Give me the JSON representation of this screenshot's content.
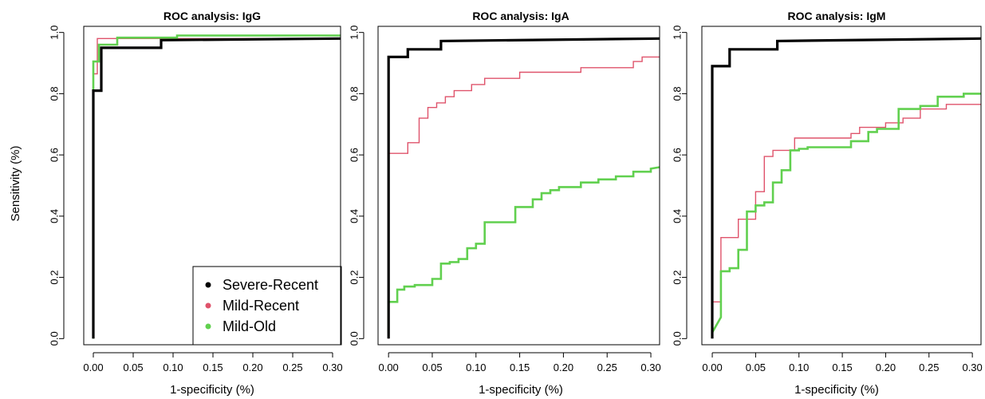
{
  "chart_data": [
    {
      "type": "line",
      "title": "ROC analysis:  IgG",
      "xlabel": "1-specificity (%)",
      "ylabel": "Sensitivity (%)",
      "xlim": [
        -0.012,
        0.31
      ],
      "ylim": [
        -0.02,
        1.02
      ],
      "xticks": [
        "0.00",
        "0.05",
        "0.10",
        "0.15",
        "0.20",
        "0.25",
        "0.30"
      ],
      "yticks": [
        "0.0",
        "0.2",
        "0.4",
        "0.6",
        "0.8",
        "1.0"
      ],
      "legend": {
        "position": "bottom-right",
        "entries": [
          "Severe-Recent",
          "Mild-Recent",
          "Mild-Old"
        ]
      },
      "series": [
        {
          "name": "Severe-Recent",
          "color": "#000000",
          "points": [
            [
              0,
              0
            ],
            [
              0,
              0.81
            ],
            [
              0.01,
              0.81
            ],
            [
              0.01,
              0.95
            ],
            [
              0.085,
              0.95
            ],
            [
              0.085,
              0.975
            ],
            [
              0.31,
              0.98
            ]
          ]
        },
        {
          "name": "Mild-Recent",
          "color": "#DF536B",
          "points": [
            [
              0,
              0
            ],
            [
              0,
              0.865
            ],
            [
              0.005,
              0.865
            ],
            [
              0.005,
              0.98
            ],
            [
              0.31,
              0.98
            ]
          ]
        },
        {
          "name": "Mild-Old",
          "color": "#61D04F",
          "points": [
            [
              0,
              0
            ],
            [
              0,
              0.905
            ],
            [
              0.007,
              0.905
            ],
            [
              0.007,
              0.96
            ],
            [
              0.03,
              0.96
            ],
            [
              0.03,
              0.983
            ],
            [
              0.105,
              0.983
            ],
            [
              0.105,
              0.99
            ],
            [
              0.31,
              0.99
            ]
          ]
        }
      ]
    },
    {
      "type": "line",
      "title": "ROC analysis:  IgA",
      "xlabel": "1-specificity (%)",
      "ylabel": "",
      "xlim": [
        -0.012,
        0.31
      ],
      "ylim": [
        -0.02,
        1.02
      ],
      "xticks": [
        "0.00",
        "0.05",
        "0.10",
        "0.15",
        "0.20",
        "0.25",
        "0.30"
      ],
      "yticks": [
        "0.0",
        "0.2",
        "0.4",
        "0.6",
        "0.8",
        "1.0"
      ],
      "series": [
        {
          "name": "Severe-Recent",
          "color": "#000000",
          "points": [
            [
              0,
              0
            ],
            [
              0,
              0.92
            ],
            [
              0.022,
              0.92
            ],
            [
              0.022,
              0.945
            ],
            [
              0.06,
              0.945
            ],
            [
              0.06,
              0.972
            ],
            [
              0.31,
              0.98
            ]
          ]
        },
        {
          "name": "Mild-Recent",
          "color": "#DF536B",
          "points": [
            [
              0,
              0
            ],
            [
              0,
              0.605
            ],
            [
              0.022,
              0.605
            ],
            [
              0.022,
              0.64
            ],
            [
              0.035,
              0.64
            ],
            [
              0.035,
              0.72
            ],
            [
              0.045,
              0.72
            ],
            [
              0.045,
              0.755
            ],
            [
              0.055,
              0.755
            ],
            [
              0.055,
              0.77
            ],
            [
              0.065,
              0.77
            ],
            [
              0.065,
              0.79
            ],
            [
              0.075,
              0.79
            ],
            [
              0.075,
              0.81
            ],
            [
              0.095,
              0.81
            ],
            [
              0.095,
              0.83
            ],
            [
              0.11,
              0.83
            ],
            [
              0.11,
              0.85
            ],
            [
              0.15,
              0.85
            ],
            [
              0.15,
              0.87
            ],
            [
              0.22,
              0.87
            ],
            [
              0.22,
              0.885
            ],
            [
              0.28,
              0.885
            ],
            [
              0.28,
              0.905
            ],
            [
              0.29,
              0.905
            ],
            [
              0.29,
              0.92
            ],
            [
              0.31,
              0.92
            ]
          ]
        },
        {
          "name": "Mild-Old",
          "color": "#61D04F",
          "points": [
            [
              0,
              0.02
            ],
            [
              0,
              0.12
            ],
            [
              0.01,
              0.12
            ],
            [
              0.01,
              0.16
            ],
            [
              0.018,
              0.16
            ],
            [
              0.018,
              0.17
            ],
            [
              0.03,
              0.17
            ],
            [
              0.03,
              0.175
            ],
            [
              0.05,
              0.175
            ],
            [
              0.05,
              0.195
            ],
            [
              0.06,
              0.195
            ],
            [
              0.06,
              0.245
            ],
            [
              0.07,
              0.245
            ],
            [
              0.07,
              0.25
            ],
            [
              0.08,
              0.25
            ],
            [
              0.08,
              0.26
            ],
            [
              0.09,
              0.26
            ],
            [
              0.09,
              0.295
            ],
            [
              0.1,
              0.295
            ],
            [
              0.1,
              0.31
            ],
            [
              0.11,
              0.31
            ],
            [
              0.11,
              0.38
            ],
            [
              0.145,
              0.38
            ],
            [
              0.145,
              0.43
            ],
            [
              0.165,
              0.43
            ],
            [
              0.165,
              0.455
            ],
            [
              0.175,
              0.455
            ],
            [
              0.175,
              0.475
            ],
            [
              0.185,
              0.475
            ],
            [
              0.185,
              0.485
            ],
            [
              0.195,
              0.485
            ],
            [
              0.195,
              0.495
            ],
            [
              0.22,
              0.495
            ],
            [
              0.22,
              0.51
            ],
            [
              0.24,
              0.51
            ],
            [
              0.24,
              0.52
            ],
            [
              0.26,
              0.52
            ],
            [
              0.26,
              0.53
            ],
            [
              0.28,
              0.53
            ],
            [
              0.28,
              0.545
            ],
            [
              0.3,
              0.545
            ],
            [
              0.3,
              0.555
            ],
            [
              0.31,
              0.56
            ]
          ]
        }
      ]
    },
    {
      "type": "line",
      "title": "ROC analysis:  IgM",
      "xlabel": "1-specificity (%)",
      "ylabel": "",
      "xlim": [
        -0.012,
        0.31
      ],
      "ylim": [
        -0.02,
        1.02
      ],
      "xticks": [
        "0.00",
        "0.05",
        "0.10",
        "0.15",
        "0.20",
        "0.25",
        "0.30"
      ],
      "yticks": [
        "0.0",
        "0.2",
        "0.4",
        "0.6",
        "0.8",
        "1.0"
      ],
      "series": [
        {
          "name": "Severe-Recent",
          "color": "#000000",
          "points": [
            [
              0,
              0
            ],
            [
              0,
              0.89
            ],
            [
              0.02,
              0.89
            ],
            [
              0.02,
              0.945
            ],
            [
              0.075,
              0.945
            ],
            [
              0.075,
              0.972
            ],
            [
              0.31,
              0.98
            ]
          ]
        },
        {
          "name": "Mild-Recent",
          "color": "#DF536B",
          "points": [
            [
              0,
              0.02
            ],
            [
              0,
              0.12
            ],
            [
              0.01,
              0.12
            ],
            [
              0.01,
              0.33
            ],
            [
              0.03,
              0.33
            ],
            [
              0.03,
              0.39
            ],
            [
              0.05,
              0.39
            ],
            [
              0.05,
              0.48
            ],
            [
              0.06,
              0.48
            ],
            [
              0.06,
              0.595
            ],
            [
              0.07,
              0.595
            ],
            [
              0.07,
              0.615
            ],
            [
              0.095,
              0.615
            ],
            [
              0.095,
              0.655
            ],
            [
              0.16,
              0.655
            ],
            [
              0.16,
              0.67
            ],
            [
              0.17,
              0.67
            ],
            [
              0.17,
              0.69
            ],
            [
              0.2,
              0.69
            ],
            [
              0.2,
              0.705
            ],
            [
              0.22,
              0.705
            ],
            [
              0.22,
              0.72
            ],
            [
              0.24,
              0.72
            ],
            [
              0.24,
              0.75
            ],
            [
              0.27,
              0.75
            ],
            [
              0.27,
              0.765
            ],
            [
              0.31,
              0.765
            ]
          ]
        },
        {
          "name": "Mild-Old",
          "color": "#61D04F",
          "points": [
            [
              0,
              0.02
            ],
            [
              0.01,
              0.07
            ],
            [
              0.01,
              0.22
            ],
            [
              0.02,
              0.22
            ],
            [
              0.02,
              0.23
            ],
            [
              0.03,
              0.23
            ],
            [
              0.03,
              0.29
            ],
            [
              0.04,
              0.29
            ],
            [
              0.04,
              0.415
            ],
            [
              0.05,
              0.415
            ],
            [
              0.05,
              0.435
            ],
            [
              0.06,
              0.435
            ],
            [
              0.06,
              0.445
            ],
            [
              0.07,
              0.445
            ],
            [
              0.07,
              0.51
            ],
            [
              0.08,
              0.51
            ],
            [
              0.08,
              0.55
            ],
            [
              0.09,
              0.55
            ],
            [
              0.09,
              0.615
            ],
            [
              0.1,
              0.615
            ],
            [
              0.1,
              0.62
            ],
            [
              0.11,
              0.62
            ],
            [
              0.11,
              0.625
            ],
            [
              0.16,
              0.625
            ],
            [
              0.16,
              0.645
            ],
            [
              0.18,
              0.645
            ],
            [
              0.18,
              0.675
            ],
            [
              0.19,
              0.675
            ],
            [
              0.19,
              0.685
            ],
            [
              0.215,
              0.685
            ],
            [
              0.215,
              0.75
            ],
            [
              0.24,
              0.75
            ],
            [
              0.24,
              0.76
            ],
            [
              0.26,
              0.76
            ],
            [
              0.26,
              0.79
            ],
            [
              0.29,
              0.79
            ],
            [
              0.29,
              0.8
            ],
            [
              0.31,
              0.8
            ]
          ]
        }
      ]
    }
  ]
}
